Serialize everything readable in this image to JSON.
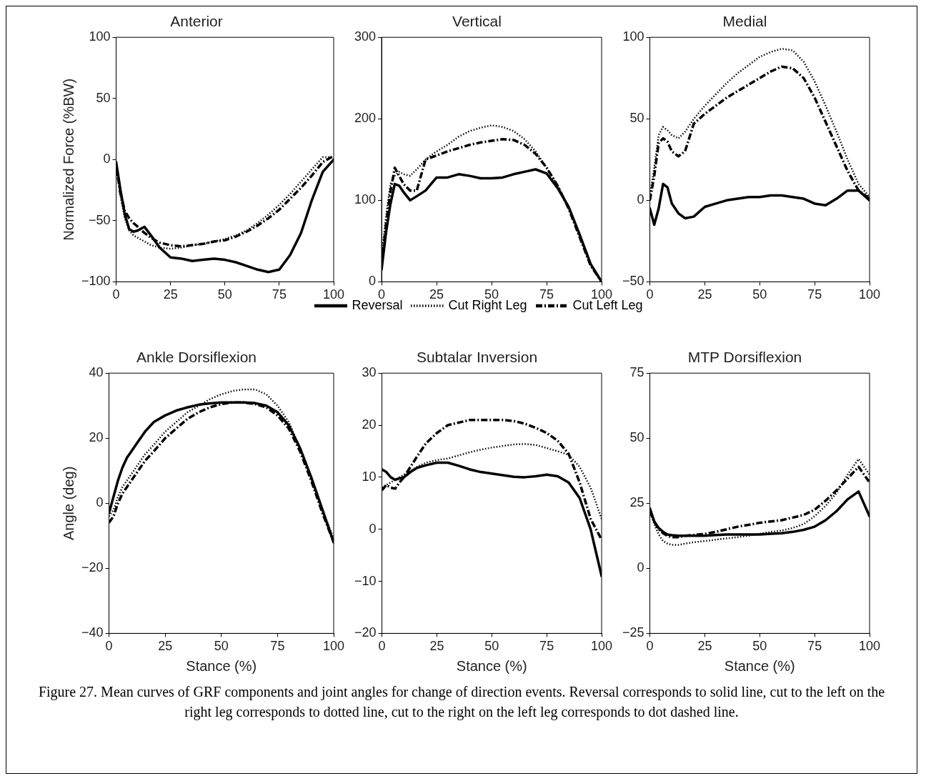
{
  "chart_data": [
    {
      "type": "line",
      "title": "Anterior",
      "ylabel": "Normalized Force (%BW)",
      "xlim": [
        0,
        100
      ],
      "xticks": [
        0,
        25,
        50,
        75,
        100
      ],
      "ylim": [
        -100,
        100
      ],
      "yticks": [
        -100,
        -50,
        0,
        50,
        100
      ],
      "grid": false,
      "x": [
        0,
        2,
        4,
        6,
        8,
        10,
        13,
        16,
        20,
        25,
        30,
        35,
        40,
        45,
        50,
        55,
        60,
        65,
        70,
        75,
        80,
        85,
        90,
        95,
        100
      ],
      "series": [
        {
          "color": "#000000",
          "line_style": "solid",
          "values": [
            -2,
            -25,
            -45,
            -57,
            -59,
            -58,
            -55,
            -62,
            -72,
            -80,
            -81,
            -83,
            -82,
            -81,
            -82,
            -84,
            -87,
            -90,
            -92,
            -90,
            -78,
            -60,
            -33,
            -10,
            0
          ]
        },
        {
          "color": "#000000",
          "line_style": "dotted",
          "values": [
            -5,
            -30,
            -48,
            -58,
            -62,
            -64,
            -67,
            -70,
            -72,
            -73,
            -72,
            -70,
            -69,
            -67,
            -65,
            -62,
            -58,
            -52,
            -45,
            -37,
            -28,
            -18,
            -8,
            2,
            2
          ]
        },
        {
          "color": "#000000",
          "line_style": "dashed",
          "values": [
            -5,
            -28,
            -42,
            -48,
            -52,
            -55,
            -60,
            -64,
            -68,
            -70,
            -71,
            -70,
            -69,
            -67,
            -66,
            -63,
            -59,
            -54,
            -48,
            -41,
            -32,
            -23,
            -13,
            -2,
            3
          ]
        }
      ]
    },
    {
      "type": "line",
      "title": "Vertical",
      "xlim": [
        0,
        100
      ],
      "xticks": [
        0,
        25,
        50,
        75,
        100
      ],
      "ylim": [
        0,
        300
      ],
      "yticks": [
        0,
        100,
        200,
        300
      ],
      "grid": false,
      "legend": "bottom",
      "x": [
        0,
        2,
        4,
        6,
        8,
        10,
        13,
        16,
        20,
        25,
        30,
        35,
        40,
        45,
        50,
        55,
        60,
        65,
        70,
        75,
        80,
        85,
        90,
        95,
        100
      ],
      "series": [
        {
          "name": "Reversal",
          "color": "#000000",
          "line_style": "solid",
          "values": [
            15,
            60,
            95,
            120,
            118,
            110,
            100,
            105,
            112,
            128,
            128,
            132,
            130,
            127,
            127,
            128,
            132,
            135,
            138,
            133,
            115,
            92,
            58,
            22,
            0
          ]
        },
        {
          "name": "Cut Right Leg",
          "color": "#000000",
          "line_style": "dotted",
          "values": [
            30,
            80,
            120,
            130,
            135,
            132,
            130,
            138,
            150,
            160,
            168,
            178,
            185,
            189,
            192,
            190,
            185,
            175,
            160,
            140,
            118,
            92,
            58,
            22,
            0
          ]
        },
        {
          "name": "Cut Left Leg",
          "color": "#000000",
          "line_style": "dashed",
          "values": [
            20,
            70,
            110,
            140,
            130,
            120,
            112,
            112,
            150,
            155,
            160,
            164,
            168,
            171,
            173,
            175,
            174,
            168,
            157,
            140,
            118,
            90,
            55,
            20,
            0
          ]
        }
      ]
    },
    {
      "type": "line",
      "title": "Medial",
      "xlim": [
        0,
        100
      ],
      "xticks": [
        0,
        25,
        50,
        75,
        100
      ],
      "ylim": [
        -50,
        100
      ],
      "yticks": [
        -50,
        0,
        50,
        100
      ],
      "grid": false,
      "x": [
        0,
        2,
        4,
        6,
        8,
        10,
        13,
        16,
        20,
        25,
        30,
        35,
        40,
        45,
        50,
        55,
        60,
        65,
        70,
        75,
        80,
        85,
        90,
        95,
        100
      ],
      "series": [
        {
          "color": "#000000",
          "line_style": "solid",
          "values": [
            -5,
            -15,
            -5,
            10,
            8,
            -2,
            -8,
            -11,
            -10,
            -4,
            -2,
            0,
            1,
            2,
            2,
            3,
            3,
            2,
            1,
            -2,
            -3,
            1,
            6,
            6,
            0
          ]
        },
        {
          "color": "#000000",
          "line_style": "dotted",
          "values": [
            2,
            20,
            40,
            45,
            43,
            40,
            38,
            42,
            50,
            58,
            65,
            72,
            78,
            83,
            88,
            91,
            93,
            92,
            85,
            73,
            58,
            42,
            25,
            10,
            2
          ]
        },
        {
          "color": "#000000",
          "line_style": "dashed",
          "values": [
            0,
            15,
            35,
            38,
            36,
            30,
            27,
            30,
            47,
            53,
            58,
            63,
            67,
            71,
            75,
            79,
            82,
            81,
            75,
            63,
            48,
            33,
            18,
            6,
            1
          ]
        }
      ]
    },
    {
      "type": "line",
      "title": "Ankle Dorsiflexion",
      "xlabel": "Stance (%)",
      "ylabel": "Angle (deg)",
      "xlim": [
        0,
        100
      ],
      "xticks": [
        0,
        25,
        50,
        75,
        100
      ],
      "ylim": [
        -40,
        40
      ],
      "yticks": [
        -40,
        -20,
        0,
        20,
        40
      ],
      "grid": false,
      "x": [
        0,
        2,
        4,
        6,
        8,
        10,
        13,
        16,
        20,
        25,
        30,
        35,
        40,
        45,
        50,
        55,
        60,
        65,
        70,
        75,
        80,
        85,
        90,
        95,
        100
      ],
      "series": [
        {
          "color": "#000000",
          "line_style": "solid",
          "values": [
            -3,
            2,
            7,
            11,
            14,
            16,
            19,
            22,
            25,
            27,
            28.5,
            29.5,
            30.3,
            30.7,
            31,
            31,
            31,
            30.8,
            30,
            28,
            24,
            17,
            8,
            -2,
            -12
          ]
        },
        {
          "color": "#000000",
          "line_style": "dotted",
          "values": [
            -4,
            -2,
            2,
            5,
            7,
            9,
            12,
            15,
            18,
            22,
            25,
            28,
            30,
            32,
            33.5,
            34.5,
            35,
            35,
            33.5,
            30,
            25,
            17,
            8,
            -2,
            -11
          ]
        },
        {
          "color": "#000000",
          "line_style": "dashed",
          "values": [
            -6,
            -4,
            0,
            3,
            5,
            7,
            10,
            13,
            16,
            20,
            23,
            26,
            28,
            29.5,
            30.5,
            31,
            31,
            30.5,
            29.5,
            27,
            23,
            16,
            7,
            -3,
            -12
          ]
        }
      ]
    },
    {
      "type": "line",
      "title": "Subtalar Inversion",
      "xlabel": "Stance (%)",
      "xlim": [
        0,
        100
      ],
      "xticks": [
        0,
        25,
        50,
        75,
        100
      ],
      "ylim": [
        -20,
        30
      ],
      "yticks": [
        -20,
        -10,
        0,
        10,
        20,
        30
      ],
      "grid": false,
      "x": [
        0,
        2,
        4,
        6,
        8,
        10,
        13,
        16,
        20,
        25,
        30,
        35,
        40,
        45,
        50,
        55,
        60,
        65,
        70,
        75,
        80,
        85,
        90,
        95,
        100
      ],
      "series": [
        {
          "color": "#000000",
          "line_style": "solid",
          "values": [
            11.5,
            11,
            10,
            9.5,
            9.8,
            10,
            11,
            11.8,
            12.3,
            12.8,
            12.8,
            12.2,
            11.5,
            11,
            10.7,
            10.4,
            10.1,
            10,
            10.2,
            10.5,
            10.2,
            9,
            6,
            0,
            -9
          ]
        },
        {
          "color": "#000000",
          "line_style": "dotted",
          "values": [
            8,
            8.5,
            9,
            9.5,
            10,
            10.5,
            11.2,
            12,
            12.8,
            13.3,
            13.6,
            14.2,
            14.8,
            15.3,
            15.7,
            16,
            16.3,
            16.4,
            16.2,
            15.6,
            15,
            14.3,
            12,
            8,
            2
          ]
        },
        {
          "color": "#000000",
          "line_style": "dashed",
          "values": [
            7.5,
            8.5,
            8,
            7.8,
            9,
            10,
            12,
            14,
            16.5,
            18.5,
            20,
            20.5,
            21,
            21,
            21,
            21,
            20.8,
            20.3,
            19.5,
            18.5,
            17,
            14.5,
            9,
            2,
            -2
          ]
        }
      ]
    },
    {
      "type": "line",
      "title": "MTP Dorsiflexion",
      "xlabel": "Stance (%)",
      "xlim": [
        0,
        100
      ],
      "xticks": [
        0,
        25,
        50,
        75,
        100
      ],
      "ylim": [
        -25,
        75
      ],
      "yticks": [
        -25,
        0,
        25,
        50,
        75
      ],
      "grid": false,
      "annotations": [
        "Figure 27. Mean curves of GRF components and joint angles for change of direction events. Reversal corresponds to solid line, cut to the left on the right leg corresponds to dotted line, cut to the right on the left leg corresponds to dot dashed line."
      ],
      "x": [
        0,
        2,
        4,
        6,
        8,
        10,
        13,
        16,
        20,
        25,
        30,
        35,
        40,
        45,
        50,
        55,
        60,
        65,
        70,
        75,
        80,
        85,
        90,
        95,
        100
      ],
      "series": [
        {
          "color": "#000000",
          "line_style": "solid",
          "values": [
            23,
            18,
            15.5,
            14,
            13,
            12.7,
            12.5,
            12.5,
            12.5,
            12.5,
            12.8,
            13,
            13,
            13,
            13,
            13.3,
            13.5,
            14,
            14.8,
            16,
            18.5,
            22,
            26.5,
            29.5,
            20
          ]
        },
        {
          "color": "#000000",
          "line_style": "dotted",
          "values": [
            22,
            17,
            13,
            10.5,
            9.5,
            9,
            9,
            9.5,
            10,
            10.5,
            11,
            11.5,
            12,
            12.5,
            13.3,
            14,
            14.5,
            15.5,
            17,
            20,
            24,
            29,
            36,
            42,
            36
          ]
        },
        {
          "color": "#000000",
          "line_style": "dashed",
          "values": [
            22,
            18,
            15,
            13.5,
            12.5,
            12,
            12,
            12.5,
            12.8,
            13.2,
            14,
            15,
            16,
            16.7,
            17.5,
            18,
            18.5,
            19.5,
            20.5,
            22.5,
            26,
            30,
            34.5,
            39,
            33
          ]
        }
      ]
    }
  ]
}
